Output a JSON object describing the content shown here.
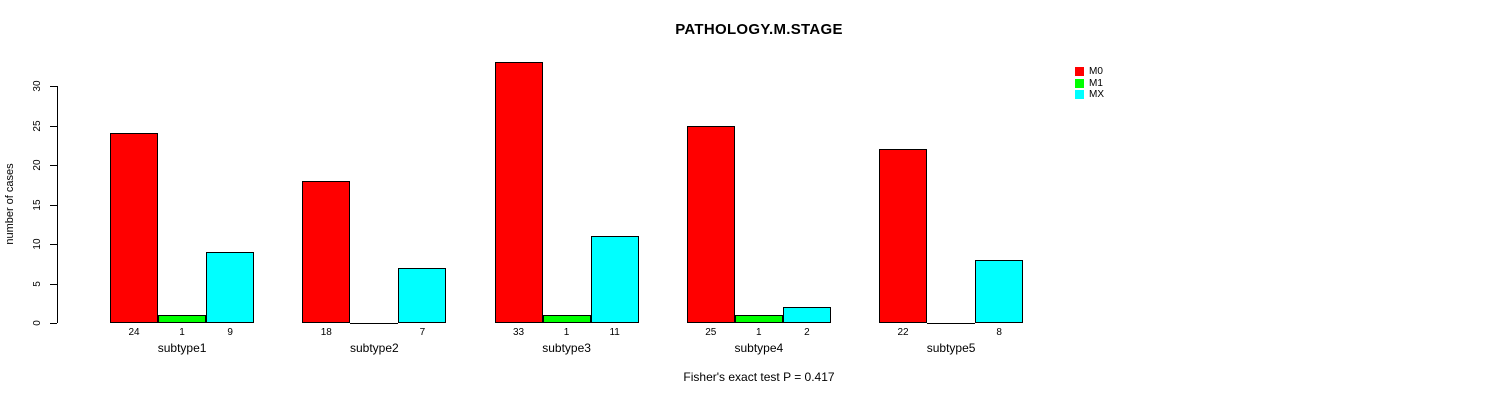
{
  "chart_data": {
    "type": "bar",
    "title": "PATHOLOGY.M.STAGE",
    "ylabel": "number of cases",
    "xlabel": "",
    "annotation": "Fisher's exact test P = 0.417",
    "categories": [
      "subtype1",
      "subtype2",
      "subtype3",
      "subtype4",
      "subtype5"
    ],
    "series": [
      {
        "name": "M0",
        "color": "#FF0000",
        "values": [
          24,
          18,
          33,
          25,
          22
        ]
      },
      {
        "name": "M1",
        "color": "#00FF00",
        "values": [
          1,
          0,
          1,
          1,
          0
        ]
      },
      {
        "name": "MX",
        "color": "#00FFFF",
        "values": [
          9,
          7,
          11,
          2,
          8
        ]
      }
    ],
    "y_ticks": [
      0,
      5,
      10,
      15,
      20,
      25,
      30
    ],
    "ylim": [
      0,
      33
    ],
    "grid": false,
    "legend_position": "top-right",
    "bar_value_labels": true,
    "zero_value_labels_hidden": true,
    "bar_border_color": "#000000",
    "axis_color": "#000000",
    "background_color": "#FFFFFF"
  }
}
